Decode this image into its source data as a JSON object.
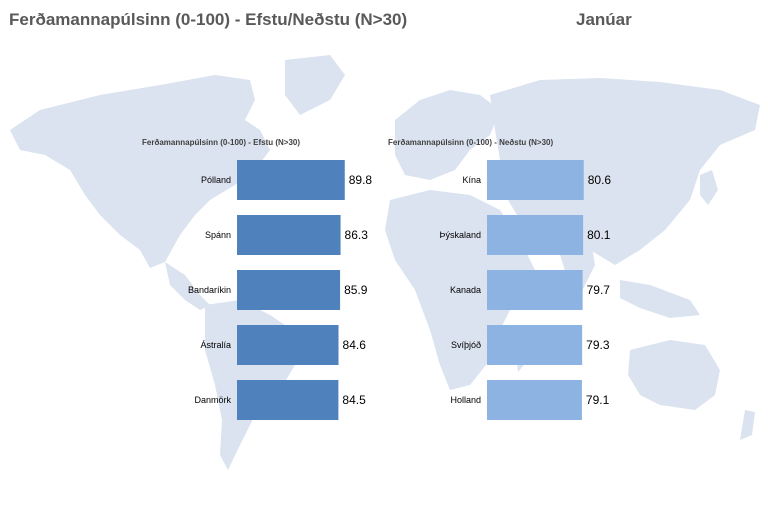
{
  "header": {
    "title": "Ferðamannapúlsinn (0-100) - Efstu/Neðstu (N>30)",
    "month": "Janúar"
  },
  "colors": {
    "top_bar": "#4f81bd",
    "bottom_bar": "#8db3e2",
    "map": "#dbe3f0",
    "title_text": "#595959"
  },
  "chart_data": [
    {
      "type": "bar",
      "orientation": "horizontal",
      "title": "Ferðamannapúlsinn (0-100) - Efstu (N>30)",
      "categories": [
        "Pólland",
        "Spánn",
        "Bandaríkin",
        "Ástralía",
        "Danmörk"
      ],
      "values": [
        89.8,
        86.3,
        85.9,
        84.6,
        84.5
      ],
      "color": "#4f81bd"
    },
    {
      "type": "bar",
      "orientation": "horizontal",
      "title": "Ferðamannapúlsinn (0-100) - Neðstu (N>30)",
      "categories": [
        "Kína",
        "Þýskaland",
        "Kanada",
        "Svíþjóð",
        "Holland"
      ],
      "values": [
        80.6,
        80.1,
        79.7,
        79.3,
        79.1
      ],
      "color": "#8db3e2"
    }
  ]
}
